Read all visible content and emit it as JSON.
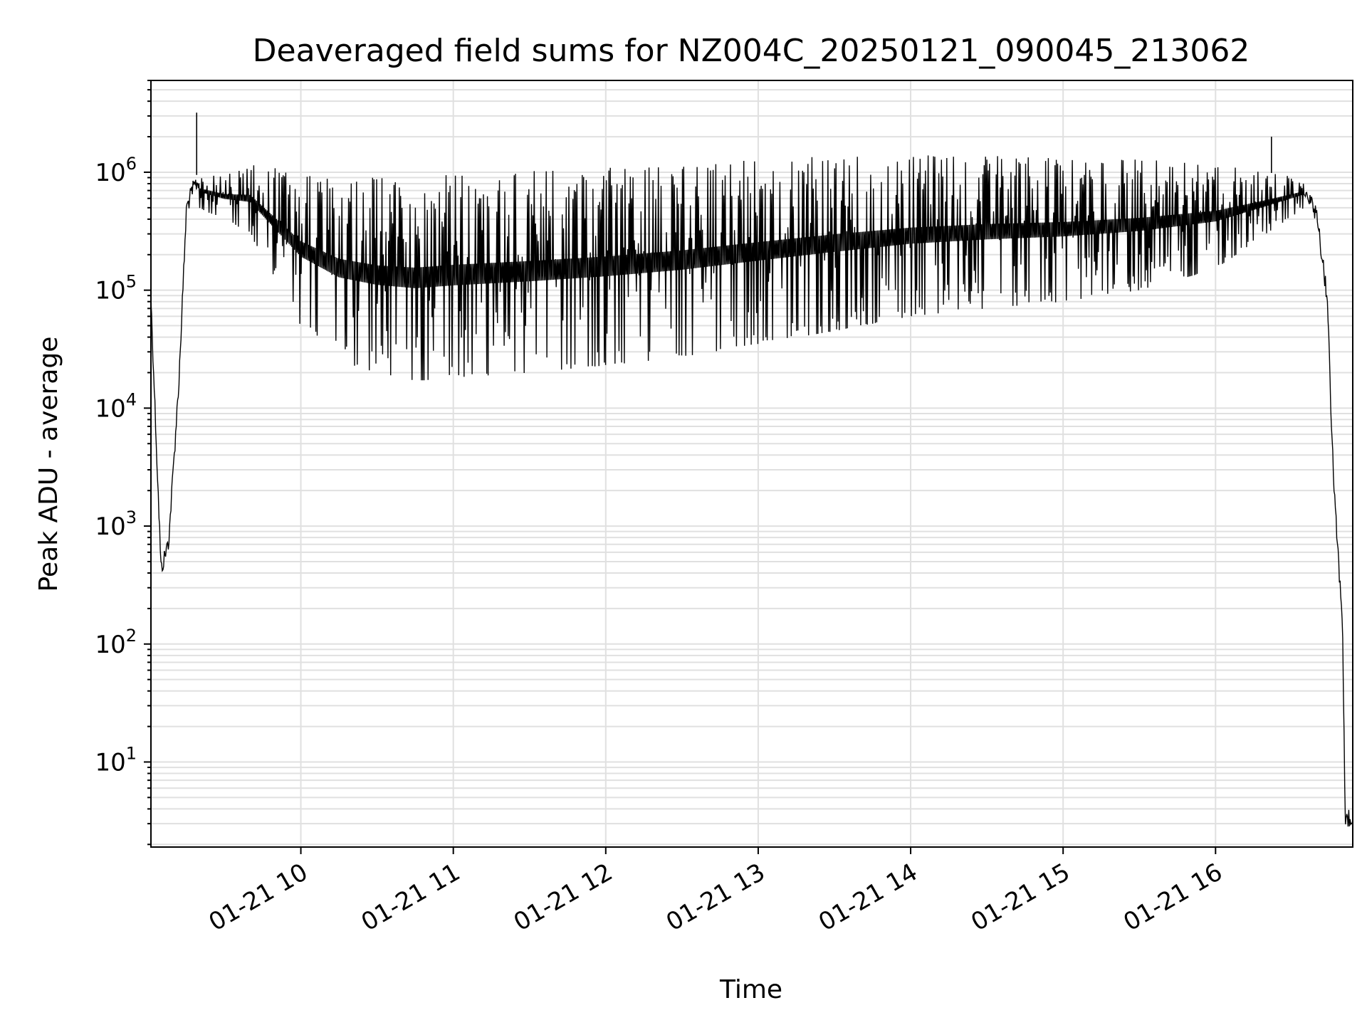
{
  "chart_data": {
    "type": "line",
    "title": "Deaveraged field sums for NZ004C_20250121_090045_213062",
    "xlabel": "Time",
    "ylabel": "Peak ADU - average",
    "xscale": "time",
    "yscale": "log",
    "xlim": [
      "01-21 09:01",
      "01-21 16:54"
    ],
    "ylim": [
      1.9,
      6000000
    ],
    "grid": true,
    "line_color": "#000000",
    "grid_color": "#e0e0e0",
    "x_ticks": [
      {
        "label": "01-21 10",
        "value": "01-21 10:00"
      },
      {
        "label": "01-21 11",
        "value": "01-21 11:00"
      },
      {
        "label": "01-21 12",
        "value": "01-21 12:00"
      },
      {
        "label": "01-21 13",
        "value": "01-21 13:00"
      },
      {
        "label": "01-21 14",
        "value": "01-21 14:00"
      },
      {
        "label": "01-21 15",
        "value": "01-21 15:00"
      },
      {
        "label": "01-21 16",
        "value": "01-21 16:00"
      }
    ],
    "y_ticks": [
      {
        "base": "10",
        "exp": "1",
        "value": 10
      },
      {
        "base": "10",
        "exp": "2",
        "value": 100
      },
      {
        "base": "10",
        "exp": "3",
        "value": 1000
      },
      {
        "base": "10",
        "exp": "4",
        "value": 10000
      },
      {
        "base": "10",
        "exp": "5",
        "value": 100000
      },
      {
        "base": "10",
        "exp": "6",
        "value": 1000000
      }
    ],
    "series": [
      {
        "envelope_note_free": true,
        "upper": {
          "x": [
            "01-21 09:01",
            "01-21 09:05",
            "01-21 09:08",
            "01-21 09:12",
            "01-21 09:15",
            "01-21 09:18",
            "01-21 09:20",
            "01-21 09:30",
            "01-21 09:40",
            "01-21 10:00",
            "01-21 10:30",
            "01-21 11:00",
            "01-21 11:30",
            "01-21 12:00",
            "01-21 12:30",
            "01-21 13:00",
            "01-21 13:30",
            "01-21 14:00",
            "01-21 14:30",
            "01-21 15:00",
            "01-21 15:30",
            "01-21 16:00",
            "01-21 16:20",
            "01-21 16:35",
            "01-21 16:40",
            "01-21 16:44",
            "01-21 16:46",
            "01-21 16:48",
            "01-21 16:50",
            "01-21 16:51",
            "01-21 16:54"
          ],
          "y": [
            100000,
            500,
            900,
            20000,
            600000,
            900000,
            1000000,
            1000000,
            1200000,
            1000000,
            900000,
            1000000,
            1050000,
            1100000,
            1200000,
            1300000,
            1400000,
            1400000,
            1400000,
            1350000,
            1300000,
            1200000,
            1000000,
            900000,
            500000,
            100000,
            5000,
            800,
            150,
            4,
            4
          ]
        },
        "lower": {
          "x": [
            "01-21 09:20",
            "01-21 09:40",
            "01-21 10:00",
            "01-21 10:15",
            "01-21 10:30",
            "01-21 10:45",
            "01-21 11:00",
            "01-21 11:15",
            "01-21 11:30",
            "01-21 12:00",
            "01-21 12:30",
            "01-21 13:00",
            "01-21 13:30",
            "01-21 14:00",
            "01-21 14:30",
            "01-21 15:00",
            "01-21 15:30",
            "01-21 16:00",
            "01-21 16:20",
            "01-21 16:35"
          ],
          "y": [
            500000,
            300000,
            50000,
            25000,
            20000,
            17000,
            18000,
            19000,
            20000,
            23000,
            27000,
            35000,
            45000,
            60000,
            70000,
            80000,
            100000,
            150000,
            300000,
            500000
          ]
        }
      }
    ],
    "spikes": [
      {
        "x": "01-21 09:19",
        "y": 3200000
      },
      {
        "x": "01-21 16:22",
        "y": 2000000
      }
    ]
  }
}
